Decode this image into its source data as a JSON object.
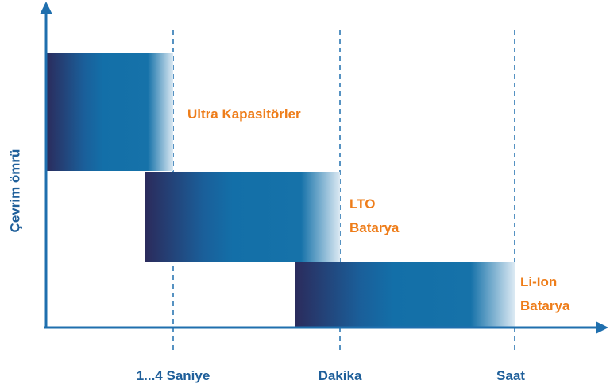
{
  "y_axis_label": "Çevrim ömrü",
  "x_labels": [
    "1...4 Saniye",
    "Dakika",
    "Saat"
  ],
  "blocks": [
    {
      "label_lines": [
        "Ultra Kapasitörler"
      ]
    },
    {
      "label_lines": [
        "LTO",
        "Batarya"
      ]
    },
    {
      "label_lines": [
        "Li-Ion",
        "Batarya"
      ]
    }
  ]
}
